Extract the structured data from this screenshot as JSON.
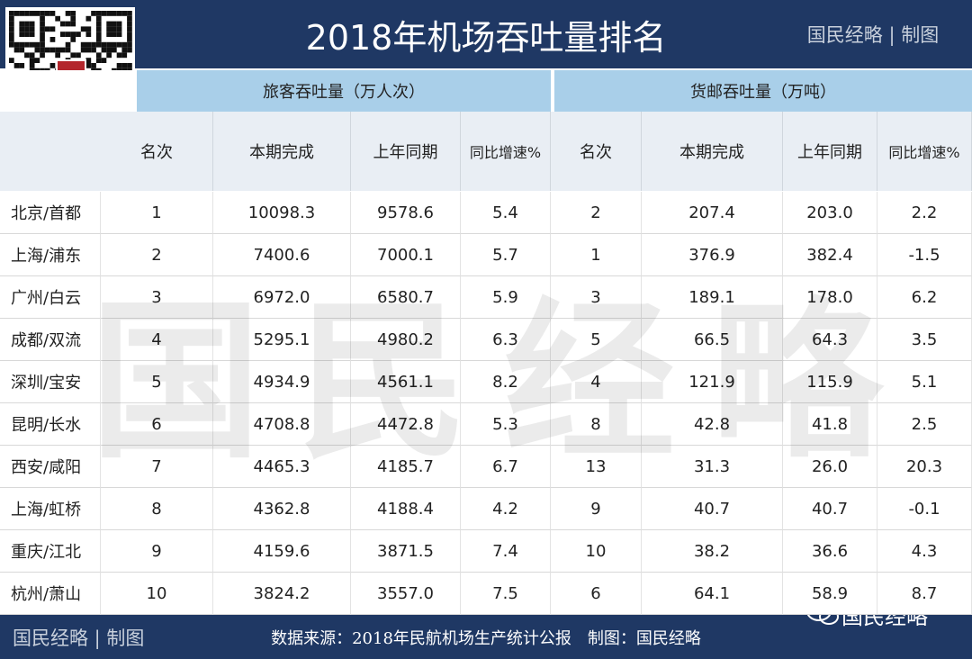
{
  "header": {
    "title": "2018年机场吞吐量排名",
    "brand": "国民经略 | 制图"
  },
  "watermark": "国民经略",
  "table": {
    "groups": [
      "旅客吞吐量（万人次）",
      "货邮吞吐量（万吨）"
    ],
    "columns": [
      "名次",
      "本期完成",
      "上年同期",
      "同比增速%",
      "名次",
      "本期完成",
      "上年同期",
      "同比增速%"
    ],
    "rows": [
      [
        "北京/首都",
        "1",
        "10098.3",
        "9578.6",
        "5.4",
        "2",
        "207.4",
        "203.0",
        "2.2"
      ],
      [
        "上海/浦东",
        "2",
        "7400.6",
        "7000.1",
        "5.7",
        "1",
        "376.9",
        "382.4",
        "-1.5"
      ],
      [
        "广州/白云",
        "3",
        "6972.0",
        "6580.7",
        "5.9",
        "3",
        "189.1",
        "178.0",
        "6.2"
      ],
      [
        "成都/双流",
        "4",
        "5295.1",
        "4980.2",
        "6.3",
        "5",
        "66.5",
        "64.3",
        "3.5"
      ],
      [
        "深圳/宝安",
        "5",
        "4934.9",
        "4561.1",
        "8.2",
        "4",
        "121.9",
        "115.9",
        "5.1"
      ],
      [
        "昆明/长水",
        "6",
        "4708.8",
        "4472.8",
        "5.3",
        "8",
        "42.8",
        "41.8",
        "2.5"
      ],
      [
        "西安/咸阳",
        "7",
        "4465.3",
        "4185.7",
        "6.7",
        "13",
        "31.3",
        "26.0",
        "20.3"
      ],
      [
        "上海/虹桥",
        "8",
        "4362.8",
        "4188.4",
        "4.2",
        "9",
        "40.7",
        "40.7",
        "-0.1"
      ],
      [
        "重庆/江北",
        "9",
        "4159.6",
        "3871.5",
        "7.4",
        "10",
        "38.2",
        "36.6",
        "4.3"
      ],
      [
        "杭州/萧山",
        "10",
        "3824.2",
        "3557.0",
        "7.5",
        "6",
        "64.1",
        "58.9",
        "8.7"
      ]
    ]
  },
  "footer": {
    "brand": "国民经略 | 制图",
    "source": "数据来源：2018年民航机场生产统计公报　制图：国民经略",
    "wechat": "国民经略"
  }
}
